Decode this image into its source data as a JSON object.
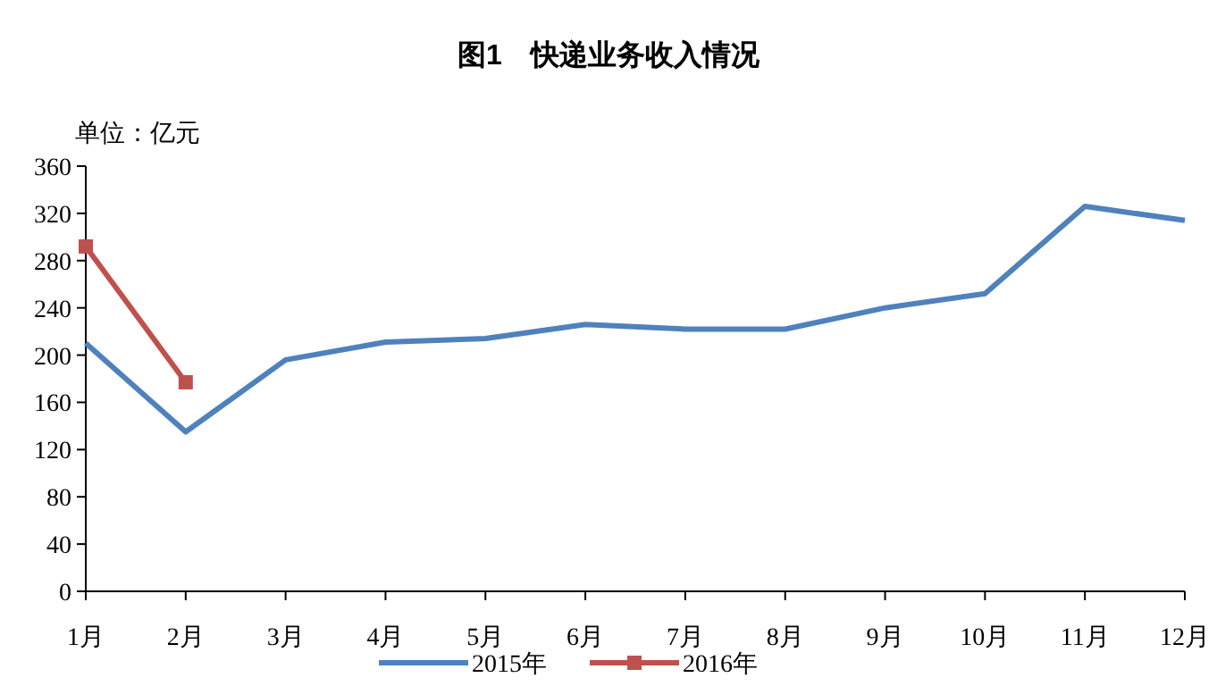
{
  "chart_data": {
    "type": "line",
    "title": "图1　快递业务收入情况",
    "ylabel": "单位：亿元",
    "categories": [
      "1月",
      "2月",
      "3月",
      "4月",
      "5月",
      "6月",
      "7月",
      "8月",
      "9月",
      "10月",
      "11月",
      "12月"
    ],
    "series": [
      {
        "name": "2015年",
        "color": "#4f81bd",
        "marker": "none",
        "values": [
          210,
          135,
          196,
          211,
          214,
          226,
          222,
          222,
          240,
          252,
          326,
          314
        ]
      },
      {
        "name": "2016年",
        "color": "#c0504d",
        "marker": "square",
        "values": [
          292,
          177,
          null,
          null,
          null,
          null,
          null,
          null,
          null,
          null,
          null,
          null
        ]
      }
    ],
    "ylim": [
      0,
      360
    ],
    "yticks": [
      0,
      40,
      80,
      120,
      160,
      200,
      240,
      280,
      320,
      360
    ],
    "grid": false,
    "legend": "bottom",
    "line_style": "solid"
  }
}
